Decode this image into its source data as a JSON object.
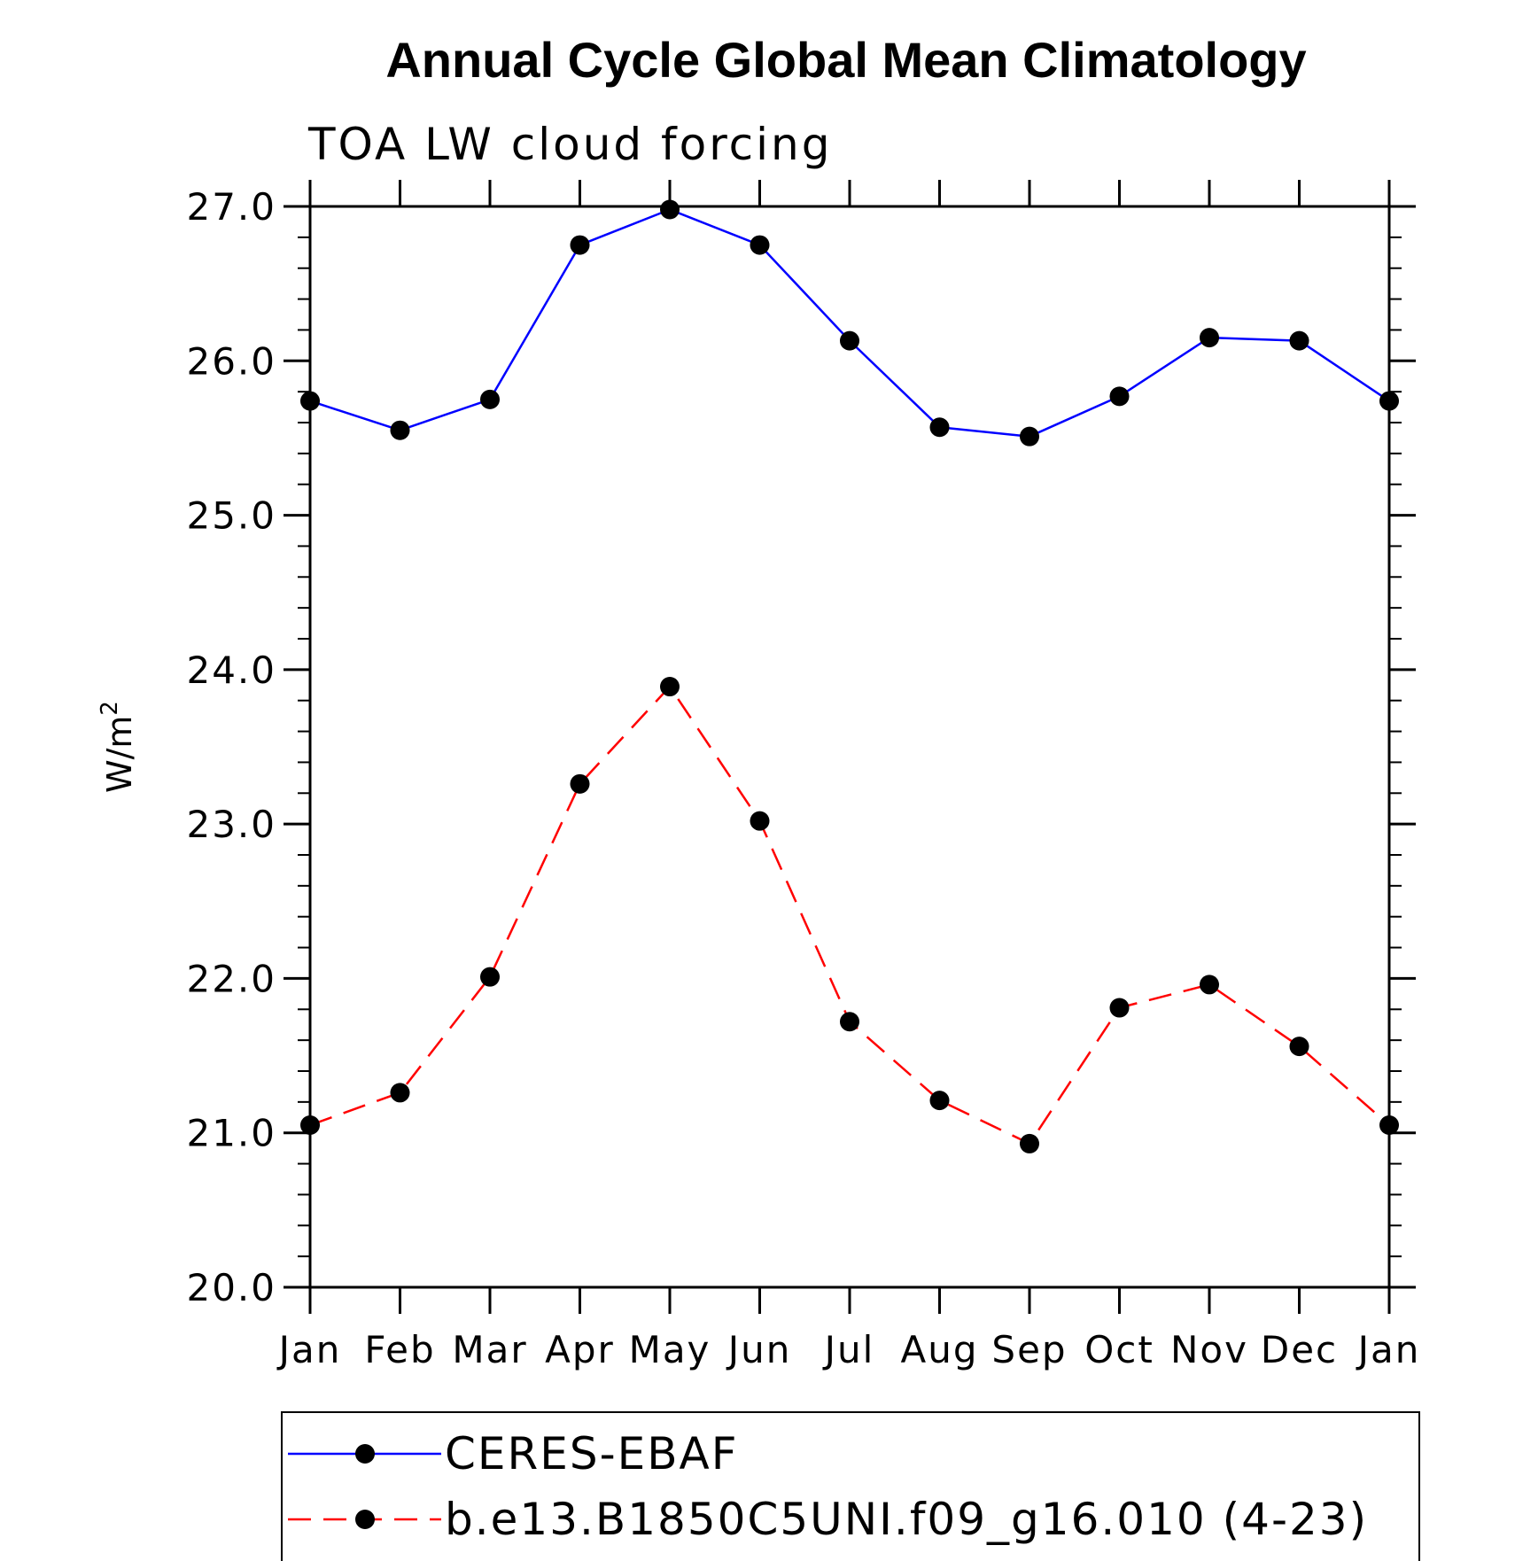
{
  "chart_data": {
    "type": "line",
    "title": "Annual Cycle Global Mean Climatology",
    "subtitle": "TOA LW cloud forcing",
    "ylabel": "W/m",
    "ylabel_superscript": "2",
    "ylim": [
      20.0,
      27.0
    ],
    "yticks": [
      "20.0",
      "21.0",
      "22.0",
      "23.0",
      "24.0",
      "25.0",
      "26.0",
      "27.0"
    ],
    "ytick_values": [
      20,
      21,
      22,
      23,
      24,
      25,
      26,
      27
    ],
    "categories": [
      "Jan",
      "Feb",
      "Mar",
      "Apr",
      "May",
      "Jun",
      "Jul",
      "Aug",
      "Sep",
      "Oct",
      "Nov",
      "Dec",
      "Jan"
    ],
    "series": [
      {
        "name": "CERES-EBAF",
        "color": "#0000ff",
        "dash": "solid",
        "values": [
          25.74,
          25.55,
          25.75,
          26.75,
          26.98,
          26.75,
          26.13,
          25.57,
          25.51,
          25.77,
          26.15,
          26.13,
          25.74
        ]
      },
      {
        "name": "b.e13.B1850C5UNI.f09_g16.010 (4-23)",
        "color": "#ff0000",
        "dash": "dashed",
        "values": [
          21.05,
          21.26,
          22.01,
          23.26,
          23.89,
          23.02,
          21.72,
          21.21,
          20.93,
          21.81,
          21.96,
          21.56,
          21.05
        ]
      }
    ],
    "grid": false,
    "legend_position": "bottom"
  }
}
